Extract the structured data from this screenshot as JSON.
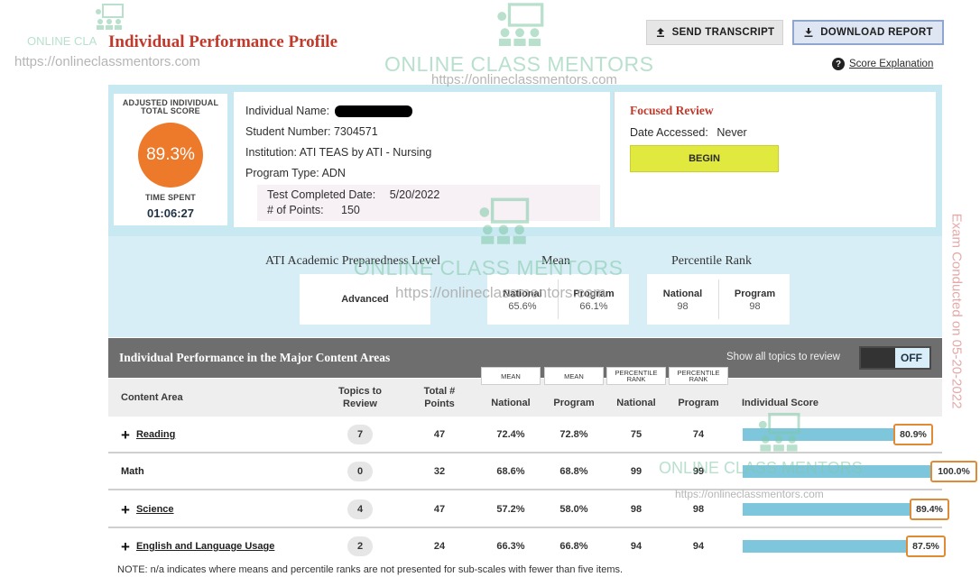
{
  "header": {
    "title": "Individual Performance Profile",
    "send_transcript": "SEND TRANSCRIPT",
    "download_report": "DOWNLOAD REPORT",
    "score_explanation": "Score Explanation"
  },
  "score": {
    "label": "ADJUSTED INDIVIDUAL TOTAL SCORE",
    "value": "89.3%",
    "time_label": "TIME SPENT",
    "time_value": "01:06:27"
  },
  "student": {
    "name_label": "Individual Name:",
    "number_label": "Student Number:",
    "number_value": "7304571",
    "institution_label": "Institution:",
    "institution_value": "ATI TEAS by ATI - Nursing",
    "program_label": "Program Type:",
    "program_value": "ADN",
    "test_date_label": "Test Completed Date:",
    "test_date_value": "5/20/2022",
    "points_label": "# of Points:",
    "points_value": "150"
  },
  "focused_review": {
    "title": "Focused Review",
    "date_label": "Date Accessed:",
    "date_value": "Never",
    "begin": "BEGIN"
  },
  "preparedness": {
    "level_header": "ATI Academic Preparedness Level",
    "level_value": "Advanced",
    "mean_header": "Mean",
    "mean_national_label": "National",
    "mean_national_value": "65.6%",
    "mean_program_label": "Program",
    "mean_program_value": "66.1%",
    "percentile_header": "Percentile Rank",
    "pr_national_label": "National",
    "pr_national_value": "98",
    "pr_program_label": "Program",
    "pr_program_value": "98"
  },
  "table": {
    "title": "Individual Performance in the Major Content Areas",
    "show_topics": "Show all topics to review",
    "toggle": "OFF",
    "sub_headers": [
      "MEAN",
      "MEAN",
      "PERCENTILE RANK",
      "PERCENTILE RANK"
    ],
    "columns": [
      "Content Area",
      "Topics to Review",
      "Total # Points",
      "National",
      "Program",
      "National",
      "Program",
      "Individual Score"
    ],
    "rows": [
      {
        "area": "Reading",
        "expandable": true,
        "topics": "7",
        "points": "47",
        "mean_national": "72.4%",
        "mean_program": "72.8%",
        "pr_national": "75",
        "pr_program": "74",
        "score": "80.9%",
        "score_value": 80.9
      },
      {
        "area": "Math",
        "expandable": false,
        "topics": "0",
        "points": "32",
        "mean_national": "68.6%",
        "mean_program": "68.8%",
        "pr_national": "99",
        "pr_program": "99",
        "score": "100.0%",
        "score_value": 100.0
      },
      {
        "area": "Science",
        "expandable": true,
        "topics": "4",
        "points": "47",
        "mean_national": "57.2%",
        "mean_program": "58.0%",
        "pr_national": "98",
        "pr_program": "98",
        "score": "89.4%",
        "score_value": 89.4
      },
      {
        "area": "English and Language Usage",
        "expandable": true,
        "topics": "2",
        "points": "24",
        "mean_national": "66.3%",
        "mean_program": "66.8%",
        "pr_national": "94",
        "pr_program": "94",
        "score": "87.5%",
        "score_value": 87.5
      }
    ],
    "note": "NOTE: n/a indicates where means and percentile ranks are not presented for sub-scales with fewer than five items."
  },
  "watermark": {
    "brand": "ONLINE CLASS MENTORS",
    "brand_small": "ONLINE CLA",
    "url": "https://onlineclassmentors.com",
    "side": "Exam Conducted on 05-20-2022"
  },
  "colors": {
    "accent_red": "#c0392b",
    "score_orange": "#ec7a2a",
    "panel_blue": "#c8e9f2",
    "bar_blue": "#7ec6dc",
    "begin_yellow": "#e1e83e"
  }
}
